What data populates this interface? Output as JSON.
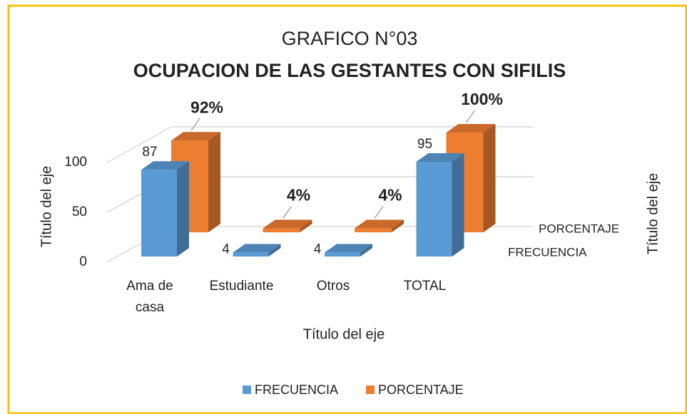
{
  "chart_data": {
    "type": "bar3d",
    "title": "GRAFICO N°03",
    "subtitle": "OCUPACION DE LAS GESTANTES CON SIFILIS",
    "x_label": "Título del eje",
    "y_label": "Título del eje",
    "y2_label": "Título del eje",
    "categories": [
      "Ama de\ncasa",
      "Estudiante",
      "Otros",
      "TOTAL"
    ],
    "series": [
      {
        "name": "FRECUENCIA",
        "color": "#5b9bd5",
        "values": [
          87,
          4,
          4,
          95
        ]
      },
      {
        "name": "PORCENTAJE",
        "color": "#ed7d31",
        "values": [
          92,
          4,
          4,
          100
        ],
        "value_labels": [
          "92%",
          "4%",
          "4%",
          "100%"
        ]
      }
    ],
    "ylim": [
      0,
      150
    ],
    "yticks": [
      0,
      50,
      100
    ],
    "grid": true,
    "legend": "bottom"
  }
}
